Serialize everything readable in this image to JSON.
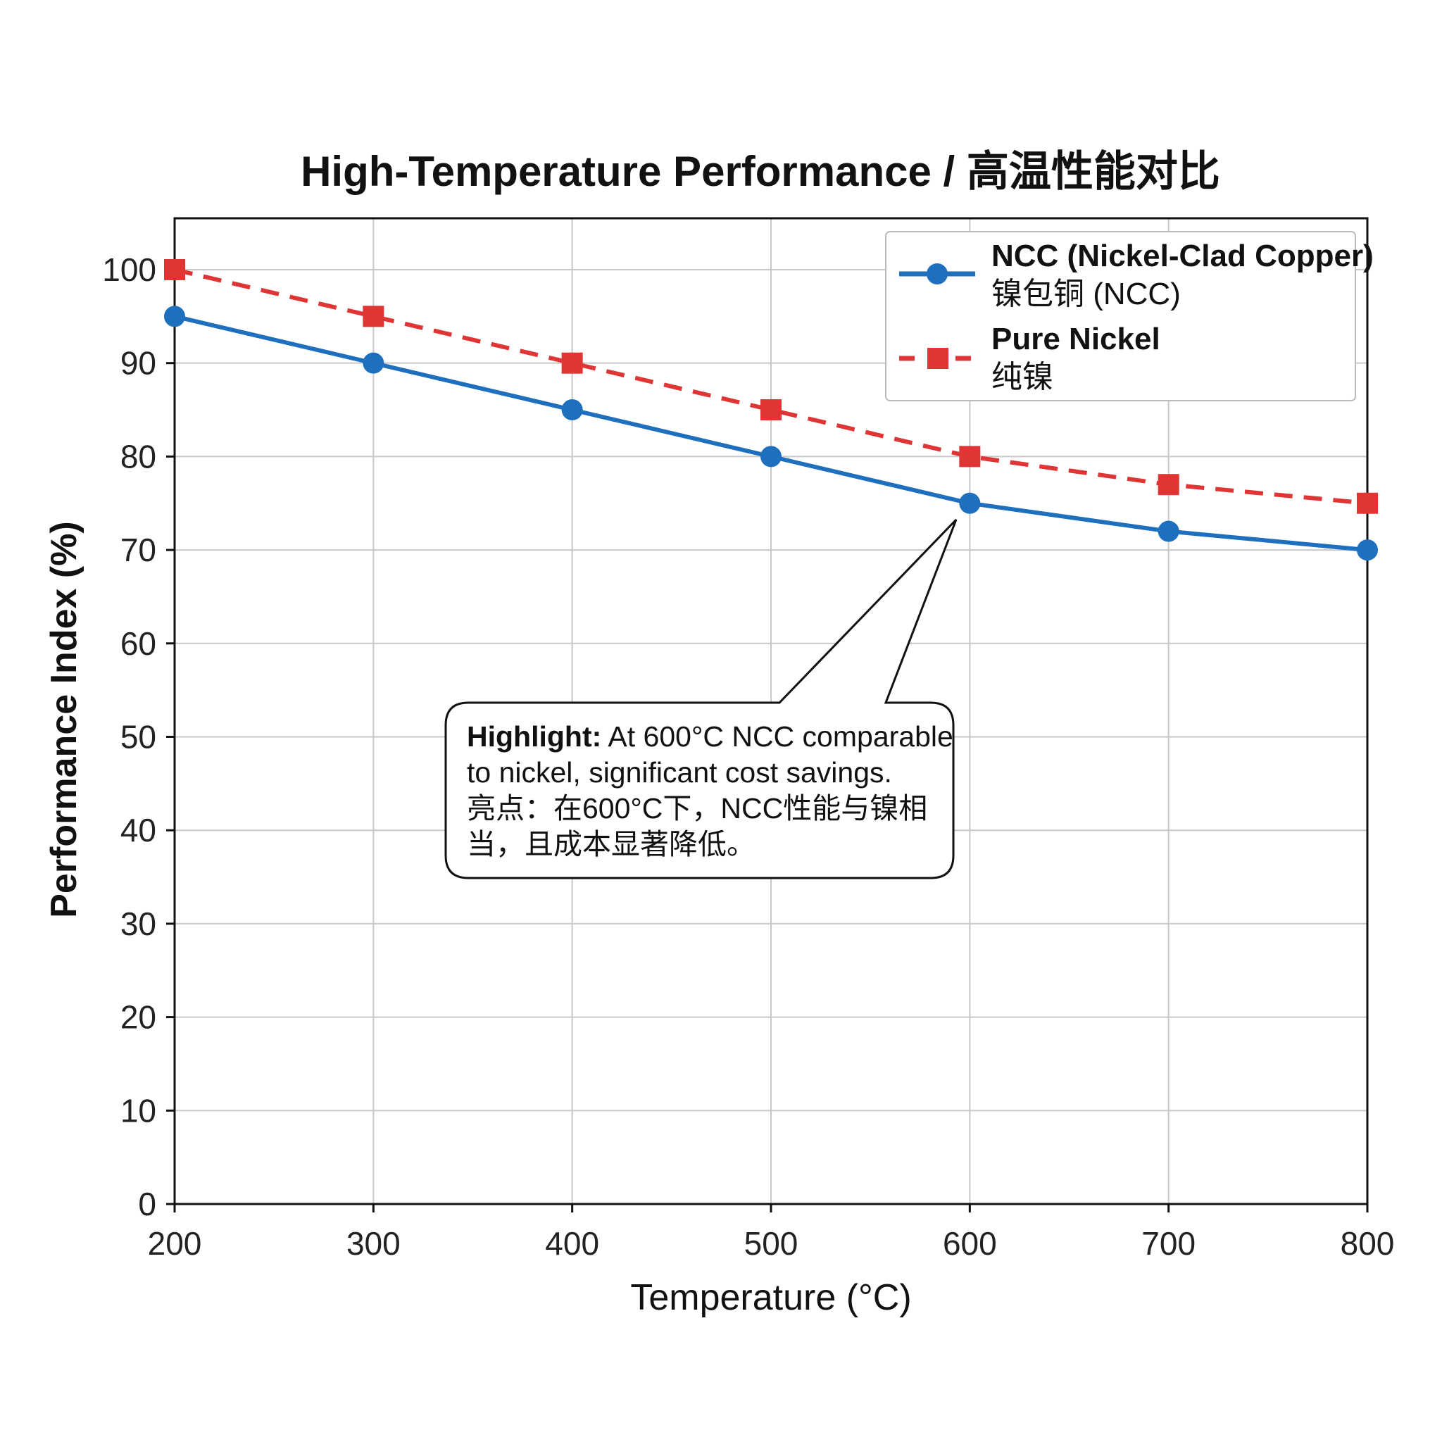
{
  "chart_data": {
    "type": "line",
    "title": "High-Temperature Performance / 高温性能对比",
    "xlabel": "Temperature (°C)",
    "ylabel": "Performance Index (%)",
    "x": [
      200,
      300,
      400,
      500,
      600,
      700,
      800
    ],
    "xlim": [
      200,
      800
    ],
    "ylim": [
      0,
      105.5
    ],
    "xticks": [
      "200",
      "300",
      "400",
      "500",
      "600",
      "700",
      "800"
    ],
    "yticks": [
      "0",
      "10",
      "20",
      "30",
      "40",
      "50",
      "60",
      "70",
      "80",
      "90",
      "100"
    ],
    "grid": true,
    "legend_placement": "top-right",
    "series": [
      {
        "name": "NCC (Nickel-Clad Copper)",
        "name_cn": "镍包铜 (NCC)",
        "values": [
          95,
          90,
          85,
          80,
          75,
          72,
          70
        ],
        "color": "#1f6fbf",
        "marker": "circle",
        "line": "solid"
      },
      {
        "name": "Pure Nickel",
        "name_cn": "纯镍",
        "values": [
          100,
          95,
          90,
          85,
          80,
          77,
          75
        ],
        "color": "#e03535",
        "marker": "square",
        "line": "dashed"
      }
    ],
    "annotation": {
      "target_x": 600,
      "target_series": "NCC (Nickel-Clad Copper)",
      "bold": "Highlight:",
      "line1": " At 600°C NCC comparable",
      "line2": "to nickel, significant cost savings.",
      "line3": "亮点：在600°C下，NCC性能与镍相",
      "line4": "当，且成本显著降低。"
    }
  }
}
